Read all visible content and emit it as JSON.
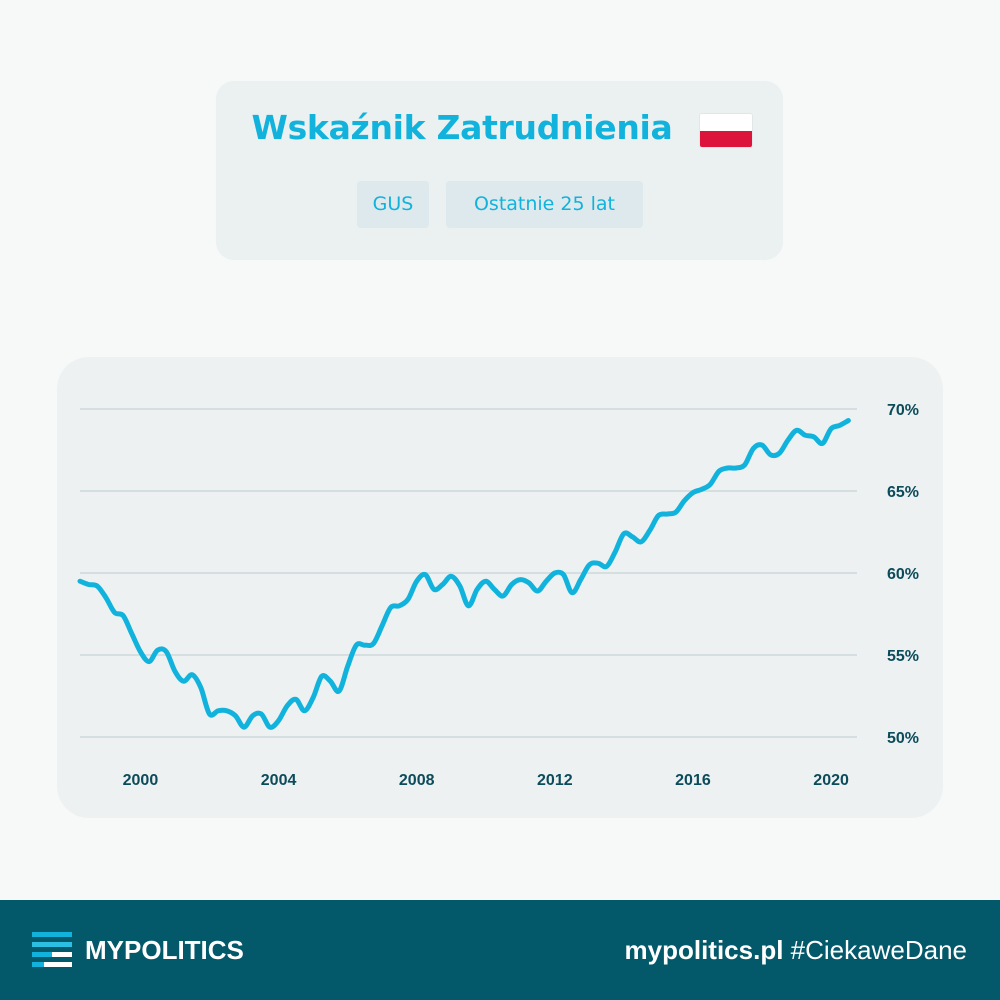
{
  "header": {
    "title": "Wskaźnik Zatrudnienia",
    "flag_icon": "poland-flag-icon",
    "tags": {
      "source": "GUS",
      "period": "Ostatnie 25 lat"
    }
  },
  "colors": {
    "accent": "#11b3dd",
    "text_dark": "#0c4b5a",
    "footer_bg": "#03586a",
    "grid": "#d5dfe2",
    "card_bg": "#edf1f2"
  },
  "chart_data": {
    "type": "line",
    "title": "",
    "xlabel": "",
    "ylabel": "",
    "x_ticks": [
      "2000",
      "2004",
      "2008",
      "2012",
      "2016",
      "2020"
    ],
    "y_ticks": [
      "50%",
      "55%",
      "60%",
      "65%",
      "70%"
    ],
    "xlim": [
      1998.25,
      2020.75
    ],
    "ylim": [
      50,
      70
    ],
    "grid": true,
    "series": [
      {
        "name": "",
        "color": "#11b3dd",
        "points": [
          [
            1998.25,
            59.5
          ],
          [
            1998.5,
            59.3
          ],
          [
            1998.75,
            59.2
          ],
          [
            1999.0,
            58.5
          ],
          [
            1999.25,
            57.6
          ],
          [
            1999.5,
            57.4
          ],
          [
            1999.75,
            56.3
          ],
          [
            2000.0,
            55.2
          ],
          [
            2000.25,
            54.6
          ],
          [
            2000.5,
            55.3
          ],
          [
            2000.75,
            55.2
          ],
          [
            2001.0,
            54.0
          ],
          [
            2001.25,
            53.4
          ],
          [
            2001.5,
            53.8
          ],
          [
            2001.75,
            53.0
          ],
          [
            2002.0,
            51.4
          ],
          [
            2002.25,
            51.6
          ],
          [
            2002.5,
            51.6
          ],
          [
            2002.75,
            51.3
          ],
          [
            2003.0,
            50.6
          ],
          [
            2003.25,
            51.3
          ],
          [
            2003.5,
            51.4
          ],
          [
            2003.75,
            50.6
          ],
          [
            2004.0,
            51.0
          ],
          [
            2004.25,
            51.9
          ],
          [
            2004.5,
            52.3
          ],
          [
            2004.75,
            51.6
          ],
          [
            2005.0,
            52.4
          ],
          [
            2005.25,
            53.7
          ],
          [
            2005.5,
            53.4
          ],
          [
            2005.75,
            52.8
          ],
          [
            2006.0,
            54.3
          ],
          [
            2006.25,
            55.6
          ],
          [
            2006.5,
            55.6
          ],
          [
            2006.75,
            55.7
          ],
          [
            2007.0,
            56.8
          ],
          [
            2007.25,
            57.9
          ],
          [
            2007.5,
            58.0
          ],
          [
            2007.75,
            58.4
          ],
          [
            2008.0,
            59.5
          ],
          [
            2008.25,
            59.9
          ],
          [
            2008.5,
            59.0
          ],
          [
            2008.75,
            59.3
          ],
          [
            2009.0,
            59.8
          ],
          [
            2009.25,
            59.2
          ],
          [
            2009.5,
            58.0
          ],
          [
            2009.75,
            59.0
          ],
          [
            2010.0,
            59.5
          ],
          [
            2010.25,
            59.0
          ],
          [
            2010.5,
            58.6
          ],
          [
            2010.75,
            59.3
          ],
          [
            2011.0,
            59.6
          ],
          [
            2011.25,
            59.4
          ],
          [
            2011.5,
            58.9
          ],
          [
            2011.75,
            59.5
          ],
          [
            2012.0,
            60.0
          ],
          [
            2012.25,
            59.9
          ],
          [
            2012.5,
            58.8
          ],
          [
            2012.75,
            59.6
          ],
          [
            2013.0,
            60.5
          ],
          [
            2013.25,
            60.6
          ],
          [
            2013.5,
            60.4
          ],
          [
            2013.75,
            61.3
          ],
          [
            2014.0,
            62.4
          ],
          [
            2014.25,
            62.2
          ],
          [
            2014.5,
            61.9
          ],
          [
            2014.75,
            62.6
          ],
          [
            2015.0,
            63.5
          ],
          [
            2015.25,
            63.6
          ],
          [
            2015.5,
            63.7
          ],
          [
            2015.75,
            64.4
          ],
          [
            2016.0,
            64.9
          ],
          [
            2016.25,
            65.1
          ],
          [
            2016.5,
            65.4
          ],
          [
            2016.75,
            66.2
          ],
          [
            2017.0,
            66.4
          ],
          [
            2017.25,
            66.4
          ],
          [
            2017.5,
            66.6
          ],
          [
            2017.75,
            67.6
          ],
          [
            2018.0,
            67.8
          ],
          [
            2018.25,
            67.2
          ],
          [
            2018.5,
            67.3
          ],
          [
            2018.75,
            68.1
          ],
          [
            2019.0,
            68.7
          ],
          [
            2019.25,
            68.4
          ],
          [
            2019.5,
            68.3
          ],
          [
            2019.75,
            67.9
          ],
          [
            2020.0,
            68.8
          ],
          [
            2020.25,
            69.0
          ],
          [
            2020.5,
            69.3
          ]
        ]
      }
    ]
  },
  "footer": {
    "logo_icon": "mypolitics-logo-icon",
    "brand": "MYPOLITICS",
    "site": "mypolitics.pl",
    "hashtag": " #CiekaweDane"
  }
}
